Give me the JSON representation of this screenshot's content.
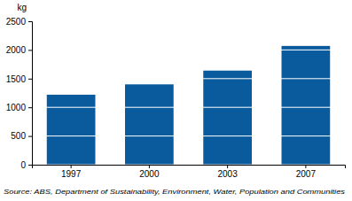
{
  "chart_data": {
    "type": "bar",
    "ylabel": "kg",
    "categories": [
      "1997",
      "2000",
      "2003",
      "2007"
    ],
    "values": [
      1220,
      1400,
      1640,
      2070
    ],
    "color": "#0a5a9e",
    "ylim": [
      0,
      2500
    ],
    "yticks": [
      0,
      500,
      1000,
      1500,
      2000,
      2500
    ],
    "grid": true,
    "source": "Source: ABS, Department of Sustainability, Environment, Water, Population and Communities"
  }
}
